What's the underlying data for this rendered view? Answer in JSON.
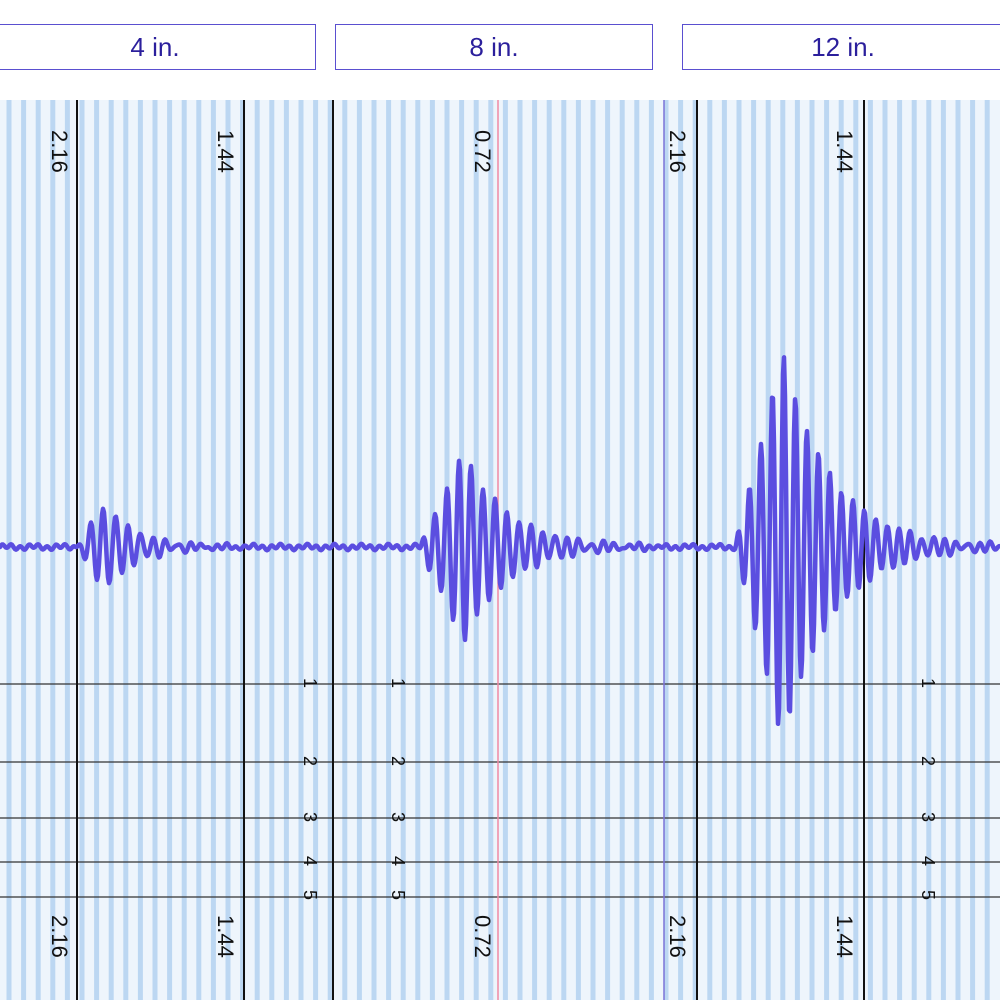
{
  "tabs": [
    {
      "label": "4 in."
    },
    {
      "label": "8 in."
    },
    {
      "label": "12 in."
    }
  ],
  "chart_data": {
    "type": "line",
    "panels": [
      {
        "name": "4 in.",
        "tick_labels": [
          "2.16",
          "1.44"
        ]
      },
      {
        "name": "8 in.",
        "tick_labels": [
          "0.72"
        ]
      },
      {
        "name": "12 in.",
        "tick_labels": [
          "2.16",
          "1.44"
        ]
      }
    ],
    "row_labels": [
      "1",
      "2",
      "3",
      "4",
      "5"
    ],
    "series": [
      {
        "color": "#5b4ee0",
        "bursts": [
          {
            "start": 0.075,
            "length": 0.17,
            "amplitude": 0.45,
            "cycle": 0.0125
          },
          {
            "start": 0.42,
            "length": 0.24,
            "amplitude": 1.0,
            "cycle": 0.012
          },
          {
            "start": 0.735,
            "length": 0.265,
            "amplitude": 2.05,
            "cycle": 0.0115
          }
        ]
      }
    ],
    "colors": {
      "wave": "#5b4ee0",
      "grid_light": "#bcd7f2",
      "background": "#eef5fc",
      "major_line": "#111111",
      "marker_line": "#f08aa4"
    },
    "grid": true
  }
}
